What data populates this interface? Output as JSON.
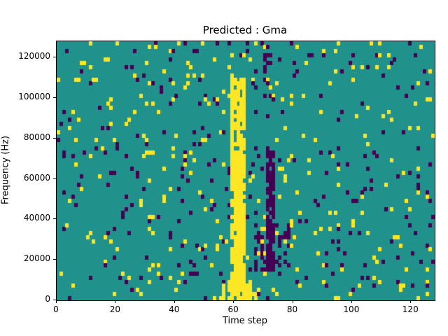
{
  "chart_data": {
    "type": "heatmap",
    "title": "Predicted : Gma",
    "xlabel": "Time step",
    "ylabel": "Frequency (Hz)",
    "x_range": [
      0,
      128
    ],
    "y_range": [
      0,
      128000
    ],
    "x_ticks": [
      0,
      20,
      40,
      60,
      80,
      100,
      120
    ],
    "y_ticks": [
      0,
      20000,
      40000,
      60000,
      80000,
      100000,
      120000
    ],
    "grid": {
      "cols": 128,
      "rows": 64
    },
    "colors": {
      "background": "#21918c",
      "high": "#fde725",
      "low": "#440154",
      "axis": "#000000",
      "figure_background": "#ffffff"
    },
    "legend": "none",
    "grid_lines": "off",
    "noise": {
      "seed": 77,
      "yellow_density": 0.032,
      "purple_density": 0.032
    },
    "features": [
      {
        "name": "yellow-vertical-band",
        "x0": 59,
        "x1": 64,
        "y0": 2000,
        "y1": 110000,
        "color": "high",
        "density": 0.72
      },
      {
        "name": "yellow-band-core",
        "x0": 60,
        "x1": 63,
        "y0": 8000,
        "y1": 72000,
        "color": "high",
        "density": 0.95
      },
      {
        "name": "bottom-yellow-blob",
        "x0": 55,
        "x1": 70,
        "y0": 0,
        "y1": 6000,
        "color": "high",
        "density": 0.5
      },
      {
        "name": "bottom-yellow-core",
        "x0": 58,
        "x1": 66,
        "y0": 0,
        "y1": 12000,
        "color": "high",
        "density": 0.8
      },
      {
        "name": "purple-vertical-band",
        "x0": 71,
        "x1": 74,
        "y0": 14000,
        "y1": 76000,
        "color": "low",
        "density": 0.8
      },
      {
        "name": "purple-cluster-low",
        "x0": 67,
        "x1": 79,
        "y0": 14000,
        "y1": 38000,
        "color": "low",
        "density": 0.25
      },
      {
        "name": "purple-top-band",
        "x0": 70,
        "x1": 73,
        "y0": 100000,
        "y1": 122000,
        "color": "low",
        "density": 0.4
      }
    ]
  }
}
